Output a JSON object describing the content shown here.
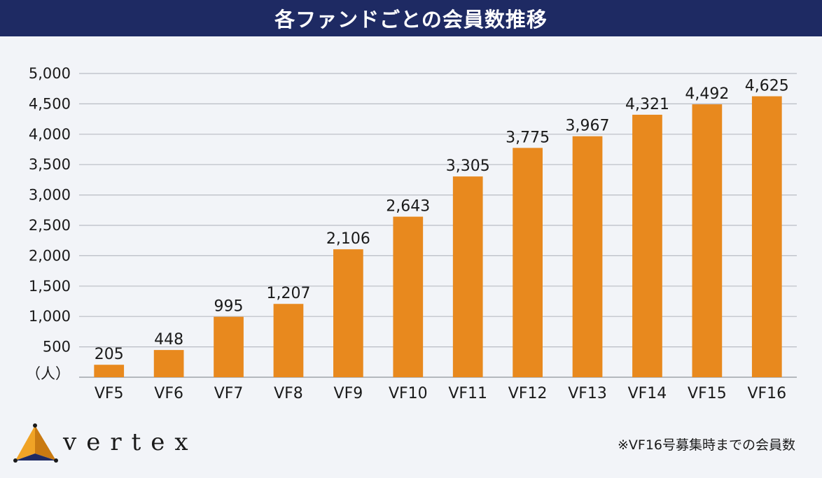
{
  "title": "各ファンドごとの会員数推移",
  "chart_data": {
    "type": "bar",
    "title": "各ファンドごとの会員数推移",
    "categories": [
      "VF5",
      "VF6",
      "VF7",
      "VF8",
      "VF9",
      "VF10",
      "VF11",
      "VF12",
      "VF13",
      "VF14",
      "VF15",
      "VF16"
    ],
    "values": [
      205,
      448,
      995,
      1207,
      2106,
      2643,
      3305,
      3775,
      3967,
      4321,
      4492,
      4625
    ],
    "value_labels": [
      "205",
      "448",
      "995",
      "1,207",
      "2,106",
      "2,643",
      "3,305",
      "3,775",
      "3,967",
      "4,321",
      "4,492",
      "4,625"
    ],
    "ylim": [
      0,
      5000
    ],
    "yticks": [
      500,
      1000,
      1500,
      2000,
      2500,
      3000,
      3500,
      4000,
      4500,
      5000
    ],
    "ytick_labels": [
      "500",
      "1,000",
      "1,500",
      "2,000",
      "2,500",
      "3,000",
      "3,500",
      "4,000",
      "4,500",
      "5,000"
    ],
    "y_unit_label": "（人）",
    "grid": true,
    "bar_color": "#e8891e"
  },
  "brand": "vertex",
  "footnote": "※VF16号募集時までの会員数",
  "colors": {
    "banner": "#1e2a63",
    "background": "#f2f4f8",
    "bar": "#e8891e"
  }
}
